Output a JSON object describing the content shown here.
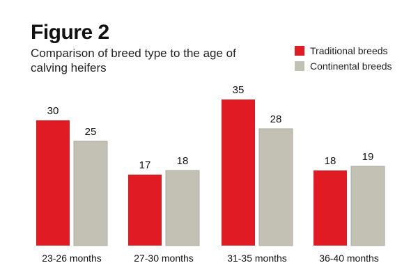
{
  "figure_label": "Figure 2",
  "chart_data": {
    "type": "bar",
    "title": "Comparison of breed type to the age of calving heifers",
    "categories": [
      "23-26 months",
      "27-30 months",
      "31-35 months",
      "36-40 months"
    ],
    "series": [
      {
        "name": "Traditional breeds",
        "values": [
          30,
          17,
          35,
          18
        ],
        "color": "#e01b24"
      },
      {
        "name": "Continental breeds",
        "values": [
          25,
          18,
          28,
          19
        ],
        "color": "#c2c1b4"
      }
    ],
    "xlabel": "",
    "ylabel": "",
    "ylim": [
      0,
      35
    ],
    "grid": false,
    "legend_position": "top-right"
  }
}
